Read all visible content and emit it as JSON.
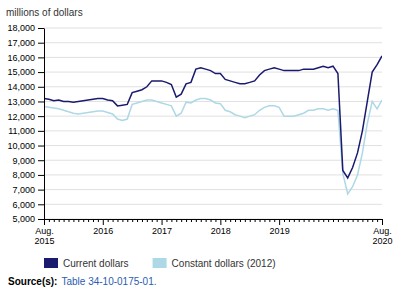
{
  "chart_data": {
    "type": "line",
    "ylabel": "millions of dollars",
    "categories": [
      "Aug.\n2015",
      null,
      null,
      null,
      null,
      null,
      null,
      null,
      null,
      null,
      null,
      null,
      "2016",
      null,
      null,
      null,
      null,
      null,
      null,
      null,
      null,
      null,
      null,
      null,
      "2017",
      null,
      null,
      null,
      null,
      null,
      null,
      null,
      null,
      null,
      null,
      null,
      "2018",
      null,
      null,
      null,
      null,
      null,
      null,
      null,
      null,
      null,
      null,
      null,
      "2019",
      null,
      null,
      null,
      null,
      null,
      null,
      null,
      null,
      null,
      null,
      null,
      null,
      null,
      null,
      null,
      null,
      null,
      null,
      null,
      null,
      "Aug.\n2020"
    ],
    "series": [
      {
        "name": "Current dollars",
        "color": "#1a1a6e",
        "values": [
          13200,
          13150,
          13050,
          13100,
          13000,
          13000,
          12950,
          13000,
          13050,
          13100,
          13150,
          13200,
          13200,
          13100,
          13050,
          12700,
          12750,
          12800,
          13600,
          13700,
          13800,
          14000,
          14400,
          14400,
          14400,
          14300,
          14150,
          13300,
          13500,
          14200,
          14300,
          15200,
          15300,
          15200,
          15100,
          14900,
          14900,
          14500,
          14400,
          14300,
          14200,
          14200,
          14300,
          14400,
          14800,
          15100,
          15200,
          15300,
          15200,
          15100,
          15100,
          15100,
          15100,
          15200,
          15200,
          15200,
          15300,
          15400,
          15300,
          15400,
          14900,
          8300,
          7800,
          8500,
          9500,
          11000,
          13000,
          15000,
          15500,
          16100
        ]
      },
      {
        "name": "Constant dollars (2012)",
        "color": "#add8e6",
        "values": [
          12650,
          12600,
          12550,
          12500,
          12400,
          12300,
          12200,
          12150,
          12200,
          12250,
          12300,
          12350,
          12350,
          12250,
          12150,
          11800,
          11700,
          11800,
          12800,
          12900,
          13000,
          13100,
          13100,
          13000,
          12900,
          12800,
          12700,
          12000,
          12200,
          12950,
          12900,
          13100,
          13200,
          13200,
          13100,
          12900,
          12850,
          12400,
          12300,
          12100,
          12000,
          11900,
          12000,
          12100,
          12400,
          12600,
          12700,
          12700,
          12600,
          12000,
          12000,
          12000,
          12100,
          12200,
          12400,
          12400,
          12500,
          12500,
          12400,
          12500,
          12400,
          8100,
          6700,
          7200,
          8000,
          9500,
          11500,
          13000,
          12500,
          13100
        ]
      }
    ],
    "ylim": [
      5000,
      18000
    ],
    "yticks": [
      {
        "value": 5000,
        "label": "5,000"
      },
      {
        "value": 6000,
        "label": "6,000"
      },
      {
        "value": 7000,
        "label": "7,000"
      },
      {
        "value": 8000,
        "label": "8,000"
      },
      {
        "value": 9000,
        "label": "9,000"
      },
      {
        "value": 10000,
        "label": "10,000"
      },
      {
        "value": 11000,
        "label": "11,000"
      },
      {
        "value": 12000,
        "label": "12,000"
      },
      {
        "value": 13000,
        "label": "13,000"
      },
      {
        "value": 14000,
        "label": "14,000"
      },
      {
        "value": 15000,
        "label": "15,000"
      },
      {
        "value": 16000,
        "label": "16,000"
      },
      {
        "value": 17000,
        "label": "17,000"
      },
      {
        "value": 18000,
        "label": "18,000"
      }
    ],
    "grid": true,
    "legend": "bottom",
    "annotations": [
      "Source(s):",
      "Table 34-10-0175-01."
    ]
  }
}
